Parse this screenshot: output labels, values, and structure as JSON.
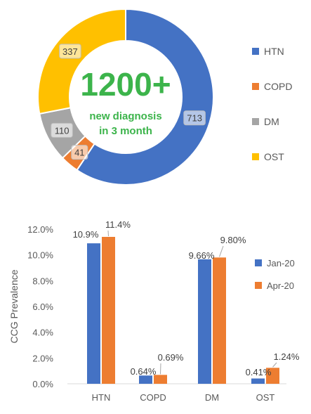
{
  "colors": {
    "HTN": "#4472C4",
    "COPD": "#ED7D31",
    "DM": "#A5A5A5",
    "OST": "#FFC000",
    "headline": "#3CB44B",
    "axis_text": "#595959",
    "grid": "#D9D9D9"
  },
  "chart_data": [
    {
      "type": "pie",
      "variant": "donut",
      "categories": [
        "HTN",
        "COPD",
        "DM",
        "OST"
      ],
      "values": [
        713,
        41,
        110,
        337
      ],
      "labels": [
        "713",
        "41",
        "110",
        "337"
      ],
      "center_value": "1200+",
      "center_caption_line1": "new diagnosis",
      "center_caption_line2": "in 3 month",
      "legend": [
        "HTN",
        "COPD",
        "DM",
        "OST"
      ],
      "legend_position": "right"
    },
    {
      "type": "bar",
      "categories": [
        "HTN",
        "COPD",
        "DM",
        "OST"
      ],
      "series": [
        {
          "name": "Jan-20",
          "values": [
            10.9,
            0.64,
            9.66,
            0.41
          ],
          "labels": [
            "10.9%",
            "0.64%",
            "9.66%",
            "0.41%"
          ]
        },
        {
          "name": "Apr-20",
          "values": [
            11.4,
            0.69,
            9.8,
            1.24
          ],
          "labels": [
            "11.4%",
            "0.69%",
            "9.80%",
            "1.24%"
          ]
        }
      ],
      "ylabel": "CCG Prevalence",
      "ylim": [
        0,
        12
      ],
      "yticks": [
        "0.0%",
        "2.0%",
        "4.0%",
        "6.0%",
        "8.0%",
        "10.0%",
        "12.0%"
      ],
      "grid": false,
      "legend_position": "right"
    }
  ]
}
